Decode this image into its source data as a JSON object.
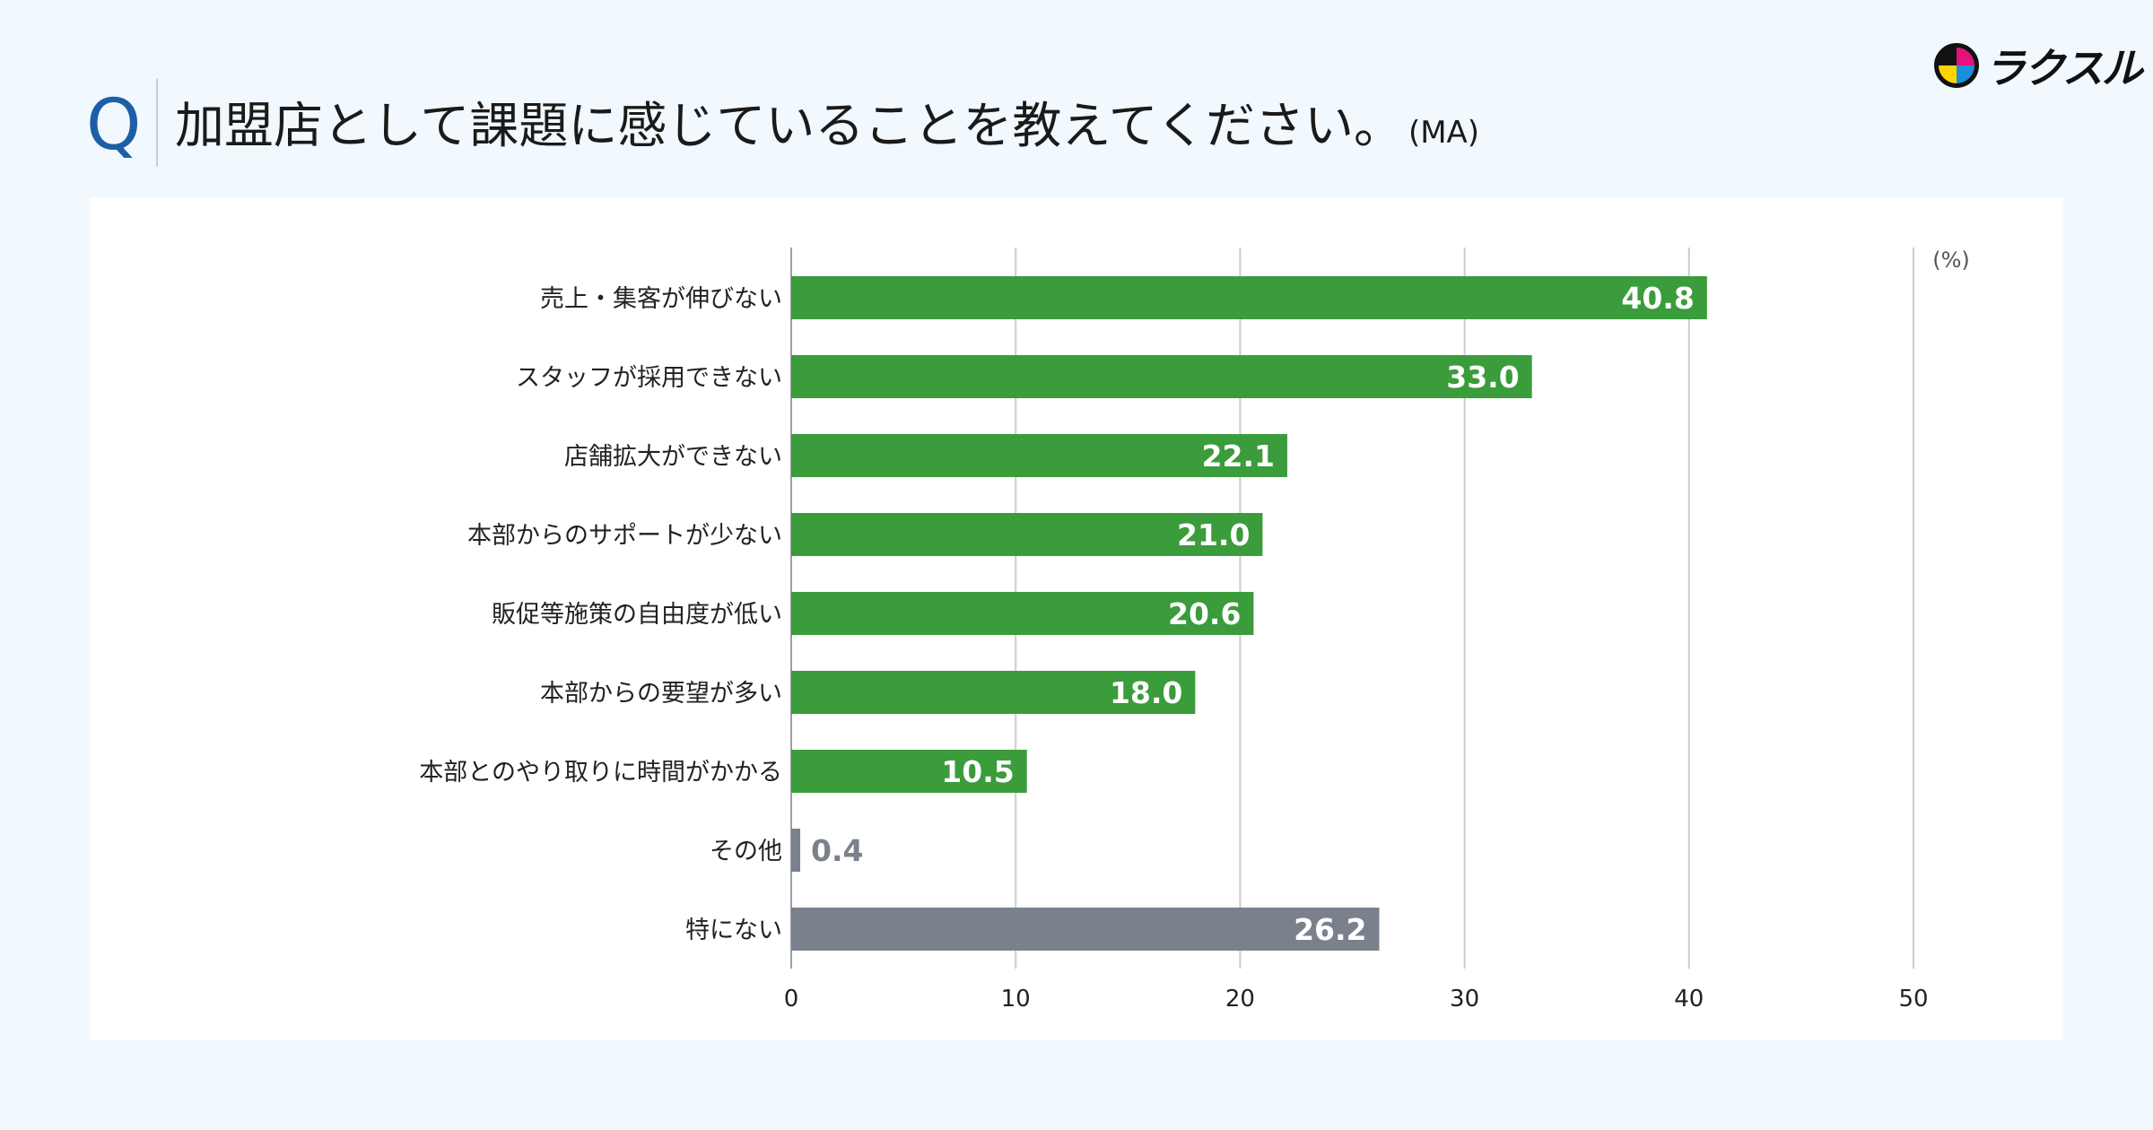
{
  "header": {
    "q_mark": "Q",
    "title": "加盟店として課題に感じていることを教えてください。",
    "title_suffix": "(MA)",
    "logo_text": "ラクスル",
    "logo_icon": "laksul-logo-icon"
  },
  "colors": {
    "primary_bar": "#3a9c3a",
    "secondary_bar": "#7b818c",
    "label_inside": "#ffffff",
    "label_outside": "#7b818c",
    "title_q": "#1d5fa6"
  },
  "chart_data": {
    "type": "bar",
    "orientation": "horizontal",
    "unit_label": "(%)",
    "categories": [
      "売上・集客が伸びない",
      "スタッフが採用できない",
      "店舗拡大ができない",
      "本部からのサポートが少ない",
      "販促等施策の自由度が低い",
      "本部からの要望が多い",
      "本部とのやり取りに時間がかかる",
      "その他",
      "特にない"
    ],
    "values": [
      40.8,
      33.0,
      22.1,
      21.0,
      20.6,
      18.0,
      10.5,
      0.4,
      26.2
    ],
    "value_labels": [
      "40.8",
      "33.0",
      "22.1",
      "21.0",
      "20.6",
      "18.0",
      "10.5",
      "0.4",
      "26.2"
    ],
    "bar_color_keys": [
      "primary",
      "primary",
      "primary",
      "primary",
      "primary",
      "primary",
      "primary",
      "secondary",
      "secondary"
    ],
    "xlim": [
      0,
      50
    ],
    "xticks": [
      0,
      10,
      20,
      30,
      40,
      50
    ],
    "xtick_labels": [
      "0",
      "10",
      "20",
      "30",
      "40",
      "50"
    ],
    "grid": true,
    "legend": "none"
  }
}
